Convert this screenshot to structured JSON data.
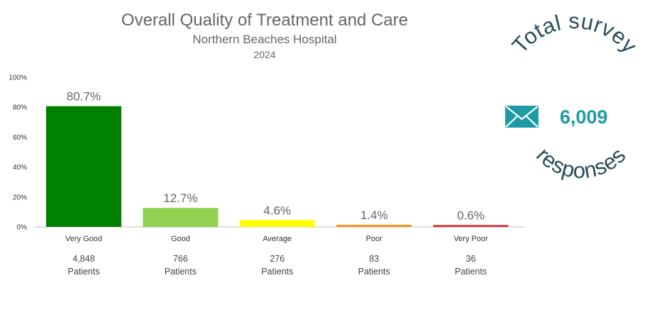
{
  "chart_data": {
    "type": "bar",
    "title": "Overall Quality of Treatment and Care",
    "subtitle": "Northern Beaches Hospital",
    "year": "2024",
    "categories": [
      "Very Good",
      "Good",
      "Average",
      "Poor",
      "Very Poor"
    ],
    "values": [
      80.7,
      12.7,
      4.6,
      1.4,
      0.6
    ],
    "value_labels": [
      "80.7%",
      "12.7%",
      "4.6%",
      "1.4%",
      "0.6%"
    ],
    "counts": [
      "4,848",
      "766",
      "276",
      "83",
      "36"
    ],
    "count_unit": "Patients",
    "colors": [
      "#008000",
      "#92d050",
      "#ffff00",
      "#f79418",
      "#e8171f"
    ],
    "ylim": [
      0,
      100
    ],
    "yticks": [
      0,
      20,
      40,
      60,
      80,
      100
    ],
    "ytick_labels": [
      "0%",
      "20%",
      "40%",
      "60%",
      "80%",
      "100%"
    ],
    "grid": false,
    "legend": "none"
  },
  "summary": {
    "arc_top_text": "Total survey",
    "arc_bottom_text": "responses",
    "total_value": "6,009",
    "icon": "envelope-icon",
    "accent_color": "#1e9aa6",
    "text_color": "#2a4d59"
  }
}
